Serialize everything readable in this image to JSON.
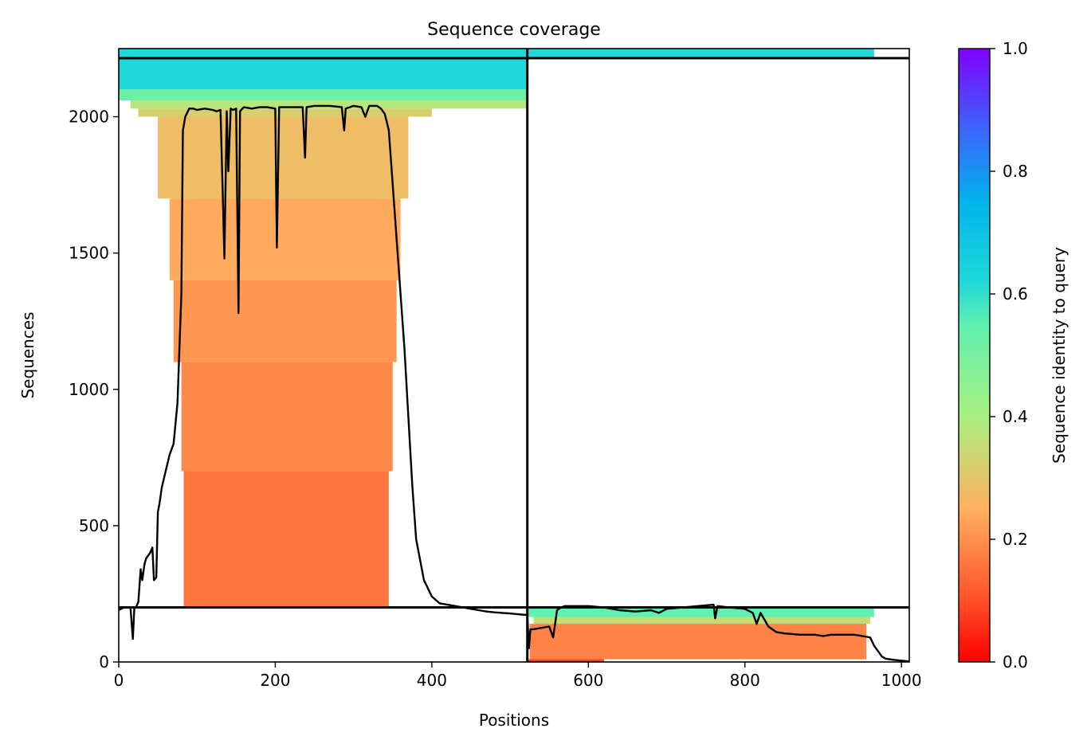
{
  "chart_data": {
    "type": "heatmap",
    "title": "Sequence coverage",
    "xlabel": "Positions",
    "ylabel": "Sequences",
    "xlim": [
      0,
      1010
    ],
    "ylim": [
      0,
      2250
    ],
    "x_ticks": [
      0,
      200,
      400,
      600,
      800,
      1000
    ],
    "y_ticks": [
      0,
      500,
      1000,
      1500,
      2000
    ],
    "grid": false,
    "colorbar": {
      "label": "Sequence identity to query",
      "colormap": "rainbow_r",
      "range": [
        0,
        1
      ],
      "ticks": [
        0.0,
        0.2,
        0.4,
        0.6,
        0.8,
        1.0
      ],
      "tick_labels": [
        "0.0",
        "0.2",
        "0.4",
        "0.6",
        "0.8",
        "1.0"
      ]
    },
    "chain_boundaries": {
      "vertical_x": [
        522
      ],
      "horizontal_y": [
        200,
        2215
      ]
    },
    "coverage_blocks": [
      {
        "x0": 0,
        "x1": 522,
        "y0": 2215,
        "y1": 2250,
        "identity": 0.62
      },
      {
        "x0": 522,
        "x1": 965,
        "y0": 2215,
        "y1": 2250,
        "identity": 0.62
      },
      {
        "x0": 0,
        "x1": 522,
        "y0": 2100,
        "y1": 2215,
        "identity": 0.62
      },
      {
        "x0": 0,
        "x1": 522,
        "y0": 2060,
        "y1": 2100,
        "identity": 0.52
      },
      {
        "x0": 15,
        "x1": 522,
        "y0": 2030,
        "y1": 2060,
        "identity": 0.38
      },
      {
        "x0": 25,
        "x1": 400,
        "y0": 2000,
        "y1": 2030,
        "identity": 0.32
      },
      {
        "x0": 50,
        "x1": 370,
        "y0": 1700,
        "y1": 2000,
        "identity": 0.28
      },
      {
        "x0": 65,
        "x1": 360,
        "y0": 1400,
        "y1": 1700,
        "identity": 0.24
      },
      {
        "x0": 70,
        "x1": 355,
        "y0": 1100,
        "y1": 1400,
        "identity": 0.21
      },
      {
        "x0": 80,
        "x1": 350,
        "y0": 700,
        "y1": 1100,
        "identity": 0.19
      },
      {
        "x0": 83,
        "x1": 345,
        "y0": 200,
        "y1": 700,
        "identity": 0.16
      },
      {
        "x0": 522,
        "x1": 965,
        "y0": 165,
        "y1": 200,
        "identity": 0.55
      },
      {
        "x0": 530,
        "x1": 960,
        "y0": 140,
        "y1": 165,
        "identity": 0.35
      },
      {
        "x0": 525,
        "x1": 955,
        "y0": 10,
        "y1": 140,
        "identity": 0.18
      },
      {
        "x0": 522,
        "x1": 620,
        "y0": 0,
        "y1": 10,
        "identity": 0.08
      }
    ],
    "coverage_line": {
      "x": [
        0,
        5,
        10,
        15,
        18,
        20,
        22,
        25,
        28,
        30,
        33,
        35,
        40,
        43,
        45,
        48,
        50,
        52,
        55,
        60,
        65,
        70,
        75,
        80,
        82,
        85,
        90,
        95,
        100,
        110,
        120,
        125,
        130,
        135,
        138,
        140,
        143,
        146,
        150,
        153,
        155,
        158,
        160,
        170,
        180,
        190,
        200,
        202,
        205,
        220,
        235,
        238,
        240,
        250,
        270,
        285,
        288,
        290,
        295,
        300,
        310,
        315,
        320,
        330,
        335,
        340,
        345,
        350,
        355,
        360,
        365,
        370,
        375,
        380,
        390,
        400,
        410,
        420,
        430,
        440,
        450,
        460,
        470,
        480,
        490,
        500,
        510,
        522,
        524,
        526,
        530,
        540,
        550,
        555,
        560,
        565,
        570,
        580,
        600,
        620,
        640,
        660,
        680,
        690,
        700,
        720,
        740,
        760,
        762,
        765,
        780,
        800,
        810,
        815,
        820,
        830,
        840,
        850,
        870,
        880,
        890,
        900,
        910,
        920,
        940,
        950,
        960,
        965,
        970,
        975,
        980,
        990,
        1000,
        1010
      ],
      "y": [
        190,
        198,
        200,
        200,
        85,
        200,
        200,
        220,
        340,
        300,
        360,
        380,
        400,
        420,
        300,
        310,
        550,
        580,
        640,
        700,
        760,
        800,
        950,
        1350,
        1950,
        2000,
        2030,
        2030,
        2025,
        2030,
        2025,
        2020,
        2025,
        1480,
        2020,
        1800,
        2030,
        2025,
        2030,
        1280,
        2020,
        2030,
        2035,
        2030,
        2035,
        2035,
        2030,
        1520,
        2035,
        2035,
        2035,
        1850,
        2035,
        2040,
        2040,
        2035,
        1950,
        2030,
        2035,
        2040,
        2035,
        2000,
        2040,
        2040,
        2030,
        2010,
        1950,
        1750,
        1550,
        1350,
        1150,
        900,
        650,
        450,
        300,
        240,
        215,
        210,
        205,
        200,
        195,
        190,
        185,
        182,
        180,
        178,
        175,
        172,
        50,
        120,
        120,
        125,
        130,
        90,
        190,
        200,
        205,
        205,
        205,
        200,
        190,
        185,
        190,
        180,
        195,
        200,
        205,
        210,
        160,
        205,
        200,
        195,
        180,
        140,
        180,
        130,
        110,
        105,
        100,
        100,
        100,
        95,
        100,
        100,
        100,
        95,
        90,
        60,
        40,
        20,
        12,
        8,
        5,
        2,
        0
      ]
    }
  }
}
